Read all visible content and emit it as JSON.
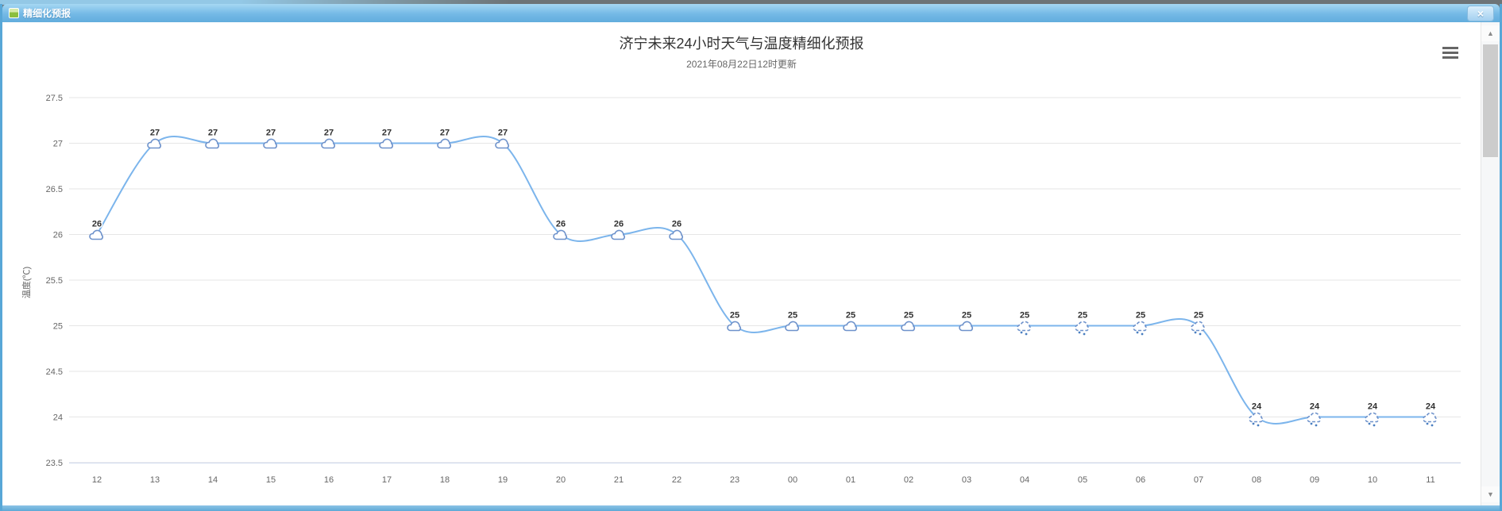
{
  "window": {
    "title": "精细化预报"
  },
  "icons": {
    "close": "×",
    "scroll_up": "▲",
    "scroll_down": "▼"
  },
  "chart_data": {
    "type": "line",
    "title": "济宁未来24小时天气与温度精细化预报",
    "subtitle": "2021年08月22日12时更新",
    "xlabel": "",
    "ylabel": "温度(℃)",
    "categories": [
      "12",
      "13",
      "14",
      "15",
      "16",
      "17",
      "18",
      "19",
      "20",
      "21",
      "22",
      "23",
      "00",
      "01",
      "02",
      "03",
      "04",
      "05",
      "06",
      "07",
      "08",
      "09",
      "10",
      "11"
    ],
    "series": [
      {
        "name": "温度",
        "values": [
          26,
          27,
          27,
          27,
          27,
          27,
          27,
          27,
          26,
          26,
          26,
          25,
          25,
          25,
          25,
          25,
          25,
          25,
          25,
          25,
          24,
          24,
          24,
          24
        ]
      }
    ],
    "weather": [
      "cloud",
      "cloud",
      "cloud",
      "cloud",
      "cloud",
      "cloud",
      "cloud",
      "cloud",
      "cloud",
      "cloud",
      "cloud",
      "cloud",
      "cloud",
      "cloud",
      "cloud",
      "cloud",
      "rain",
      "rain",
      "rain",
      "rain",
      "rain",
      "rain",
      "rain",
      "rain"
    ],
    "data_labels": true,
    "ylim": [
      23.5,
      27.5
    ],
    "ytick_step": 0.5,
    "grid": true,
    "legend": false,
    "colors": {
      "line": "#7cb5ec",
      "icon_stroke": "#6e92cb",
      "rain_drop": "#4a7fc1",
      "data_label": "#303030",
      "axis_text": "#666666",
      "grid_line": "#e6e6e6",
      "axis_line": "#ccd6eb"
    }
  }
}
